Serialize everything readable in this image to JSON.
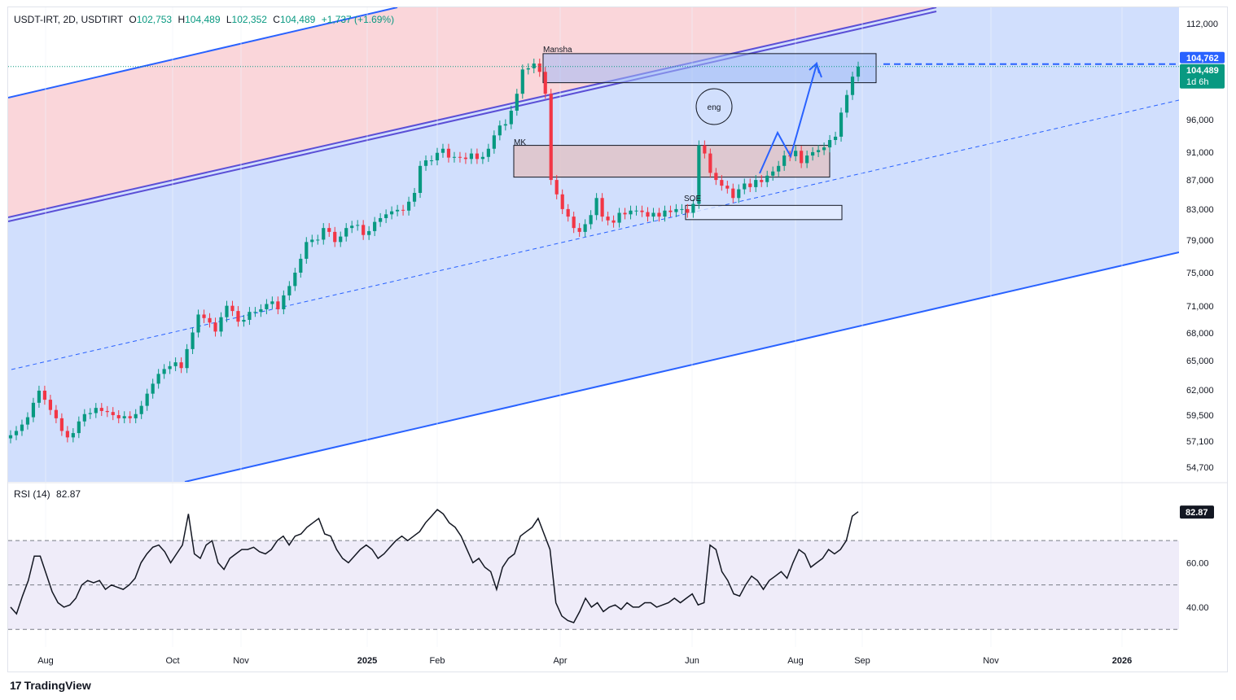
{
  "header": {
    "symbol": "USDT-IRT, 2D, USDTIRT",
    "o_label": "O",
    "o": "102,753",
    "h_label": "H",
    "h": "104,489",
    "l_label": "L",
    "l": "102,352",
    "c_label": "C",
    "c": "104,489",
    "change": "+1,737 (+1.69%)"
  },
  "rsi_legend": {
    "label": "RSI (14)",
    "value": "82.87"
  },
  "brand": {
    "name": "TradingView"
  },
  "colors": {
    "up": "#089981",
    "down": "#f23645",
    "channel_fill": "#d1dffd",
    "upper_fill": "#fad6da",
    "channel_line": "#2962ff",
    "rsi_band": "#efecf9",
    "accent": "#2962ff"
  },
  "chart_data": [
    {
      "type": "candlestick",
      "title": "USDT-IRT, 2D, USDTIRT",
      "ylim": [
        53000,
        115000
      ],
      "yscale": "log",
      "y_ticks": [
        112000,
        96000,
        91000,
        87000,
        83000,
        79000,
        75000,
        71000,
        68000,
        65000,
        62000,
        59500,
        57100,
        54700
      ],
      "y_tick_labels": [
        "112,000",
        "96,000",
        "91,000",
        "87,000",
        "83,000",
        "79,000",
        "75,000",
        "71,000",
        "68,000",
        "65,000",
        "62,000",
        "59,500",
        "57,100",
        "54,700"
      ],
      "x_ticks": [
        "Aug",
        "Oct",
        "Nov",
        "2025",
        "Feb",
        "Apr",
        "Jun",
        "Aug",
        "Sep",
        "Nov",
        "2026"
      ],
      "price_labels": [
        {
          "value": 104762,
          "text": "104,762",
          "color": "#2962ff"
        },
        {
          "value": 104489,
          "text": "104,489",
          "sub": "1d 6h",
          "color": "#089981"
        }
      ],
      "annotations": [
        "Mansha",
        "MK",
        "SOE",
        "eng"
      ],
      "zones": [
        {
          "label": "Mansha",
          "from": 101800,
          "to": 106700
        },
        {
          "label": "MK",
          "from": 87400,
          "to": 92000
        },
        {
          "label": "SOE",
          "from": 81600,
          "to": 83500
        }
      ],
      "close_series": [
        57600,
        58000,
        58600,
        59300,
        60700,
        61900,
        61000,
        60000,
        59200,
        58000,
        57400,
        57800,
        58900,
        59600,
        59700,
        60200,
        59900,
        59800,
        59500,
        59200,
        59400,
        59200,
        59600,
        60400,
        61600,
        62600,
        63600,
        64100,
        64400,
        64800,
        64200,
        66200,
        68000,
        70000,
        69600,
        69100,
        68100,
        69700,
        71000,
        70400,
        69200,
        69400,
        70300,
        70300,
        70600,
        71200,
        71500,
        70600,
        72200,
        73300,
        74900,
        76600,
        78700,
        79000,
        79000,
        80500,
        80000,
        78700,
        79400,
        80500,
        80800,
        80900,
        79600,
        80100,
        81300,
        81800,
        82300,
        82700,
        82900,
        82800,
        84000,
        85200,
        89000,
        89800,
        89800,
        90900,
        91500,
        90200,
        90300,
        90200,
        90000,
        90800,
        90000,
        90300,
        91500,
        93500,
        95000,
        95200,
        97300,
        100000,
        104000,
        104200,
        105000,
        103600,
        100000,
        87000,
        85000,
        83000,
        82000,
        80500,
        80000,
        81000,
        82200,
        84500,
        82000,
        81500,
        81200,
        82500,
        82300,
        82800,
        82800,
        82600,
        82000,
        82500,
        82000,
        82800,
        82600,
        83000,
        83000,
        82500,
        83700,
        92000,
        90800,
        88000,
        87000,
        86200,
        85800,
        84500,
        85700,
        86500,
        86000,
        87000,
        86700,
        87600,
        88200,
        89000,
        90500,
        90400,
        91200,
        89400,
        90500,
        91000,
        91300,
        91700,
        92800,
        93300,
        97000,
        99800,
        102800,
        104489
      ],
      "rsi": {
        "label": "RSI (14)",
        "value": 82.87,
        "levels": [
          70,
          50,
          30
        ],
        "ylim": [
          22,
          95
        ],
        "y_tick_labels": [
          "60.00",
          "40.00"
        ],
        "values": [
          40,
          37,
          45,
          52,
          63,
          63,
          55,
          47,
          42,
          40,
          41,
          44,
          50,
          52,
          51,
          52,
          48,
          50,
          49,
          48,
          50,
          53,
          60,
          64,
          67,
          68,
          65,
          60,
          64,
          68,
          82,
          64,
          62,
          68,
          70,
          60,
          57,
          62,
          64,
          66,
          66,
          67,
          65,
          64,
          66,
          70,
          72,
          68,
          72,
          73,
          76,
          78,
          80,
          73,
          72,
          66,
          62,
          60,
          63,
          66,
          68,
          66,
          62,
          64,
          67,
          70,
          72,
          70,
          72,
          74,
          78,
          81,
          84,
          82,
          78,
          76,
          72,
          66,
          60,
          62,
          58,
          56,
          48,
          58,
          62,
          64,
          72,
          74,
          76,
          80,
          73,
          66,
          42,
          36,
          34,
          33,
          38,
          44,
          40,
          42,
          38,
          40,
          41,
          39,
          42,
          40,
          40,
          42,
          42,
          40,
          41,
          42,
          44,
          42,
          44,
          46,
          41,
          42,
          68,
          66,
          56,
          52,
          46,
          45,
          50,
          54,
          52,
          48,
          52,
          54,
          56,
          53,
          60,
          66,
          64,
          58,
          60,
          62,
          66,
          64,
          66,
          70,
          81,
          83
        ]
      }
    }
  ]
}
